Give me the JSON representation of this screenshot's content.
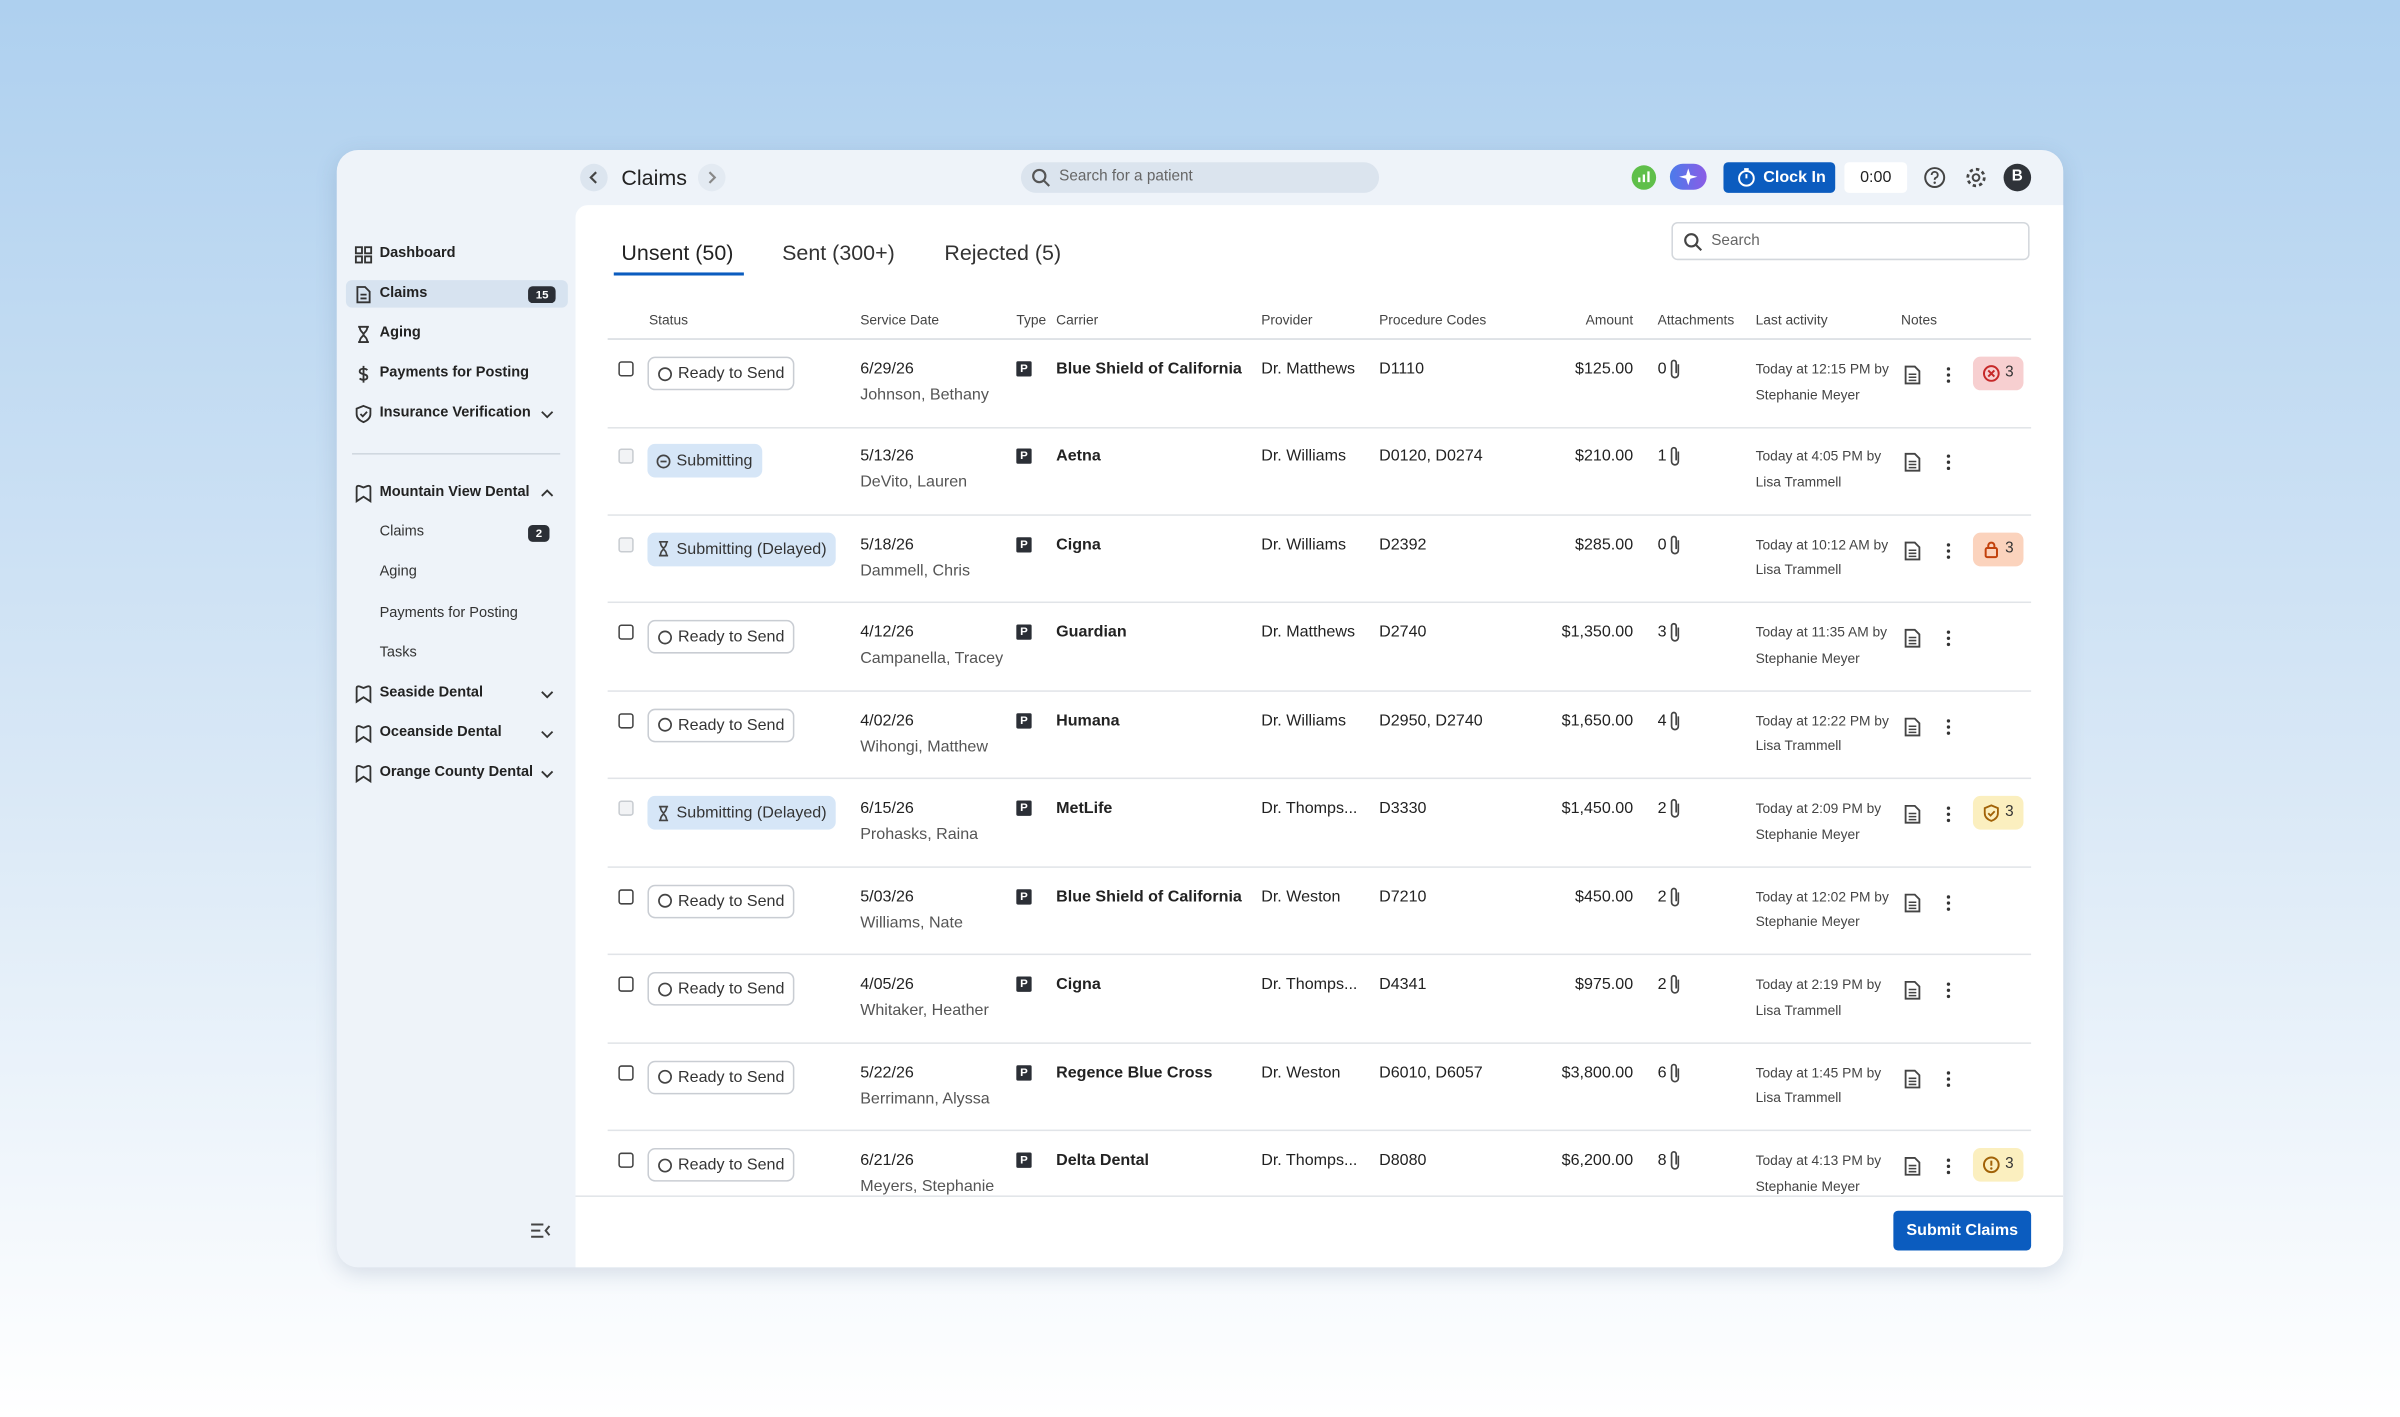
{
  "header": {
    "title": "Claims",
    "search_placeholder": "Search for a patient",
    "clock_in": "Clock In",
    "timer": "0:00",
    "avatar": "B"
  },
  "sidebar": {
    "nav": [
      {
        "label": "Dashboard",
        "icon": "grid"
      },
      {
        "label": "Claims",
        "icon": "doc",
        "badge": 15,
        "active": true
      },
      {
        "label": "Aging",
        "icon": "hourglass"
      },
      {
        "label": "Payments for Posting",
        "icon": "dollar"
      },
      {
        "label": "Insurance Verification",
        "icon": "shield",
        "chevron": "down"
      }
    ],
    "locations": [
      {
        "label": "Mountain View Dental",
        "chevron": "up",
        "items": [
          {
            "label": "Claims",
            "badge": 2
          },
          {
            "label": "Aging"
          },
          {
            "label": "Payments for Posting"
          },
          {
            "label": "Tasks"
          }
        ]
      },
      {
        "label": "Seaside Dental",
        "chevron": "down",
        "items": []
      },
      {
        "label": "Oceanside Dental",
        "chevron": "down",
        "items": []
      },
      {
        "label": "Orange County Dental",
        "chevron": "down",
        "items": []
      }
    ]
  },
  "tabs": [
    {
      "label": "Unsent (50)",
      "active": true
    },
    {
      "label": "Sent (300+)"
    },
    {
      "label": "Rejected (5)"
    }
  ],
  "search_placeholder": "Search",
  "table": {
    "columns": [
      "Status",
      "Service Date",
      "Type",
      "Carrier",
      "Provider",
      "Procedure Codes",
      "Amount",
      "Attachments",
      "Last activity",
      "Notes"
    ],
    "rows": [
      {
        "checkbox_enabled": true,
        "status": "Ready to Send",
        "status_icon": "circle",
        "service_date": "6/29/26",
        "patient": "Johnson, Bethany",
        "type": "P",
        "carrier": "Blue Shield of California",
        "provider": "Dr. Matthews",
        "procedure_codes": "D1110",
        "amount": "$125.00",
        "attachments": 0,
        "activity": [
          "Today at 12:15 PM by",
          "Stephanie Meyer"
        ],
        "alert": {
          "kind": "error",
          "count": 3
        }
      },
      {
        "checkbox_enabled": false,
        "status": "Submitting",
        "status_icon": "minus",
        "service_date": "5/13/26",
        "patient": "DeVito, Lauren",
        "type": "P",
        "carrier": "Aetna",
        "provider": "Dr. Williams",
        "procedure_codes": "D0120, D0274",
        "amount": "$210.00",
        "attachments": 1,
        "activity": [
          "Today at 4:05 PM by",
          "Lisa Trammell"
        ]
      },
      {
        "checkbox_enabled": false,
        "status": "Submitting (Delayed)",
        "status_icon": "hourglass",
        "service_date": "5/18/26",
        "patient": "Dammell, Chris",
        "type": "P",
        "carrier": "Cigna",
        "provider": "Dr. Williams",
        "procedure_codes": "D2392",
        "amount": "$285.00",
        "attachments": 0,
        "activity": [
          "Today at 10:12 AM by",
          "Lisa Trammell"
        ],
        "alert": {
          "kind": "lock",
          "count": 3
        }
      },
      {
        "checkbox_enabled": true,
        "status": "Ready to Send",
        "status_icon": "circle",
        "service_date": "4/12/26",
        "patient": "Campanella, Tracey",
        "type": "P",
        "carrier": "Guardian",
        "provider": "Dr. Matthews",
        "procedure_codes": "D2740",
        "amount": "$1,350.00",
        "attachments": 3,
        "activity": [
          "Today at 11:35 AM by",
          "Stephanie Meyer"
        ]
      },
      {
        "checkbox_enabled": true,
        "status": "Ready to Send",
        "status_icon": "circle",
        "service_date": "4/02/26",
        "patient": "Wihongi, Matthew",
        "type": "P",
        "carrier": "Humana",
        "provider": "Dr. Williams",
        "procedure_codes": "D2950, D2740",
        "amount": "$1,650.00",
        "attachments": 4,
        "activity": [
          "Today at 12:22 PM by",
          "Lisa Trammell"
        ]
      },
      {
        "checkbox_enabled": false,
        "status": "Submitting (Delayed)",
        "status_icon": "hourglass",
        "service_date": "6/15/26",
        "patient": "Prohasks, Raina",
        "type": "P",
        "carrier": "MetLife",
        "provider": "Dr. Thomps...",
        "procedure_codes": "D3330",
        "amount": "$1,450.00",
        "attachments": 2,
        "activity": [
          "Today at 2:09 PM by",
          "Stephanie Meyer"
        ],
        "alert": {
          "kind": "shield",
          "count": 3
        }
      },
      {
        "checkbox_enabled": true,
        "status": "Ready to Send",
        "status_icon": "circle",
        "service_date": "5/03/26",
        "patient": "Williams, Nate",
        "type": "P",
        "carrier": "Blue Shield of California",
        "provider": "Dr. Weston",
        "procedure_codes": "D7210",
        "amount": "$450.00",
        "attachments": 2,
        "activity": [
          "Today at 12:02 PM by",
          "Stephanie Meyer"
        ]
      },
      {
        "checkbox_enabled": true,
        "status": "Ready to Send",
        "status_icon": "circle",
        "service_date": "4/05/26",
        "patient": "Whitaker, Heather",
        "type": "P",
        "carrier": "Cigna",
        "provider": "Dr. Thomps...",
        "procedure_codes": "D4341",
        "amount": "$975.00",
        "attachments": 2,
        "activity": [
          "Today at 2:19 PM by",
          "Lisa Trammell"
        ]
      },
      {
        "checkbox_enabled": true,
        "status": "Ready to Send",
        "status_icon": "circle",
        "service_date": "5/22/26",
        "patient": "Berrimann, Alyssa",
        "type": "P",
        "carrier": "Regence Blue Cross",
        "provider": "Dr. Weston",
        "procedure_codes": "D6010, D6057",
        "amount": "$3,800.00",
        "attachments": 6,
        "activity": [
          "Today at 1:45 PM by",
          "Lisa Trammell"
        ]
      },
      {
        "checkbox_enabled": true,
        "status": "Ready to Send",
        "status_icon": "circle",
        "service_date": "6/21/26",
        "patient": "Meyers, Stephanie",
        "type": "P",
        "carrier": "Delta Dental",
        "provider": "Dr. Thomps...",
        "procedure_codes": "D8080",
        "amount": "$6,200.00",
        "attachments": 8,
        "activity": [
          "Today at 4:13 PM by",
          "Stephanie Meyer"
        ],
        "alert": {
          "kind": "warning",
          "count": 3
        }
      }
    ]
  },
  "footer": {
    "submit": "Submit Claims"
  }
}
